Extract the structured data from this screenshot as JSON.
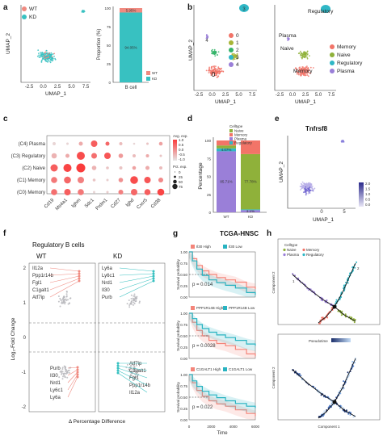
{
  "colors": {
    "wt": "#f08a80",
    "kd": "#38c1c1",
    "c0": "#f27468",
    "c1": "#a7b536",
    "c2": "#35b46a",
    "c3": "#2fb7c6",
    "c4": "#9a7fd8",
    "memory": "#f27468",
    "naive": "#8fb13a",
    "regulatory": "#2fb7c6",
    "plasma": "#9a7fd8",
    "grey": "#b9b9bd",
    "high": "#f4857a",
    "low": "#29b3c1"
  },
  "panels": {
    "a": {
      "letter": "a",
      "umap": {
        "xlabel": "UMAP_1",
        "ylabel": "UMAP_2",
        "xticks": [
          "-2.5",
          "0.0",
          "2.5",
          "5.0",
          "7.5"
        ],
        "legend": [
          {
            "label": "WT",
            "color": "wt"
          },
          {
            "label": "KD",
            "color": "kd"
          }
        ]
      },
      "bar": {
        "ylabel": "Proportion (%)",
        "category": "B cell",
        "ylim": [
          0,
          100
        ],
        "yticks": [
          "0",
          "25",
          "50",
          "75",
          "100"
        ],
        "series": [
          {
            "name": "KD",
            "value": 94.0,
            "label": "94.05%",
            "color": "kd"
          },
          {
            "name": "WT",
            "value": 6.0,
            "label": "5.95%",
            "color": "wt"
          }
        ],
        "legend": [
          {
            "label": "WT",
            "color": "wt"
          },
          {
            "label": "KD",
            "color": "kd"
          }
        ]
      }
    },
    "b": {
      "letter": "b",
      "left": {
        "xlabel": "UMAP_1",
        "ylabel": "UMAP_2",
        "xticks": [
          "-2.5",
          "0.0",
          "2.5",
          "5.0",
          "7.5"
        ],
        "cluster_labels": [
          "0",
          "3",
          "4"
        ],
        "legend": [
          {
            "label": "0",
            "color": "c0"
          },
          {
            "label": "1",
            "color": "c1"
          },
          {
            "label": "2",
            "color": "c2"
          },
          {
            "label": "3",
            "color": "c3"
          },
          {
            "label": "4",
            "color": "c4"
          }
        ]
      },
      "right": {
        "xlabel": "UMAP_1",
        "xticks": [
          "-2.5",
          "0.0",
          "2.5",
          "5.0",
          "7.5"
        ],
        "annotations": [
          "Regulatory",
          "Plasma",
          "Naive",
          "Memory"
        ],
        "legend": [
          {
            "label": "Memory",
            "color": "memory"
          },
          {
            "label": "Naive",
            "color": "naive"
          },
          {
            "label": "Regulatory",
            "color": "regulatory"
          },
          {
            "label": "Plasma",
            "color": "plasma"
          }
        ]
      }
    },
    "c": {
      "letter": "c",
      "rows": [
        "(C4) Plasma",
        "(C3) Regulatory",
        "(C2) Naive",
        "(C1) Memory",
        "(C0) Memory"
      ],
      "genes": [
        "Cd19",
        "Ms4a1",
        "Ighm",
        "Sdc1",
        "Prdm1",
        "Cd27",
        "Ighd",
        "Cxcr5",
        "Cd38"
      ],
      "legend_title_color": "Avg. exp.",
      "legend_colors": [
        "1.0",
        "0.5",
        "0.0",
        "-0.5",
        "-1.0"
      ],
      "legend_title_size": "Pct. exp.",
      "legend_sizes": [
        "0",
        "25",
        "50",
        "75"
      ],
      "dots": [
        [
          [
            0.2,
            -0.8
          ],
          [
            0.1,
            -0.8
          ],
          [
            0.3,
            -0.3
          ],
          [
            0.6,
            0.6
          ],
          [
            0.3,
            0.5
          ],
          [
            0.2,
            -0.5
          ],
          [
            0.05,
            -0.8
          ],
          [
            0.1,
            -0.6
          ],
          [
            0.25,
            -0.2
          ]
        ],
        [
          [
            0.45,
            -0.4
          ],
          [
            0.3,
            -0.3
          ],
          [
            0.8,
            0.8
          ],
          [
            0.5,
            0.4
          ],
          [
            0.6,
            0.7
          ],
          [
            0.35,
            -0.1
          ],
          [
            0.2,
            -0.5
          ],
          [
            0.2,
            -0.3
          ],
          [
            0.1,
            -0.6
          ]
        ],
        [
          [
            0.7,
            0.6
          ],
          [
            0.8,
            0.9
          ],
          [
            0.9,
            1.0
          ],
          [
            0.35,
            -0.4
          ],
          [
            0.15,
            -0.6
          ],
          [
            0.2,
            -0.6
          ],
          [
            0.25,
            -0.2
          ],
          [
            0.3,
            -0.3
          ],
          [
            0.2,
            -0.5
          ]
        ],
        [
          [
            0.55,
            0.3
          ],
          [
            0.65,
            0.5
          ],
          [
            0.6,
            0.2
          ],
          [
            0.15,
            -0.6
          ],
          [
            0.1,
            -0.7
          ],
          [
            0.35,
            0.0
          ],
          [
            0.75,
            0.8
          ],
          [
            0.6,
            0.7
          ],
          [
            0.4,
            0.1
          ]
        ],
        [
          [
            0.55,
            0.4
          ],
          [
            0.6,
            0.6
          ],
          [
            0.55,
            0.3
          ],
          [
            0.1,
            -0.8
          ],
          [
            0.1,
            -0.7
          ],
          [
            0.4,
            0.2
          ],
          [
            0.6,
            0.5
          ],
          [
            0.55,
            0.6
          ],
          [
            0.65,
            0.9
          ]
        ]
      ]
    },
    "d": {
      "letter": "d",
      "ylabel": "Percentage",
      "ylim": [
        0,
        100
      ],
      "yticks": [
        "0",
        "25",
        "50",
        "75",
        "100"
      ],
      "categories": [
        "WT",
        "KD"
      ],
      "legend_title": "Celltype",
      "legend": [
        {
          "label": "Naive",
          "color": "naive"
        },
        {
          "label": "Memory",
          "color": "memory"
        },
        {
          "label": "Plasma",
          "color": "plasma"
        },
        {
          "label": "Regulatory",
          "color": "regulatory"
        }
      ],
      "stacks": [
        [
          {
            "celltype": "plasma",
            "value": 85.0,
            "label": "85.71%"
          },
          {
            "celltype": "regulatory",
            "value": 4.0,
            "label": "4.07%"
          },
          {
            "celltype": "naive",
            "value": 4.0,
            "label": ""
          },
          {
            "celltype": "memory",
            "value": 7.0,
            "label": ""
          }
        ],
        [
          {
            "celltype": "plasma",
            "value": 3.0,
            "label": "3.1%"
          },
          {
            "celltype": "regulatory",
            "value": 1.0,
            "label": ""
          },
          {
            "celltype": "naive",
            "value": 77.0,
            "label": "77.78%"
          },
          {
            "celltype": "memory",
            "value": 19.0,
            "label": ""
          }
        ]
      ]
    },
    "e": {
      "letter": "e",
      "title": "Tnfrsf8",
      "xlabel": "UMAP_1",
      "ylabel": "UMAP_2",
      "xticks": [
        "0",
        "5"
      ],
      "colorbar": [
        "2.0",
        "1.5",
        "1.0",
        "0.5",
        "0.0"
      ]
    },
    "f": {
      "letter": "f",
      "title": "Regulatory B cells",
      "ylabel": "Log₂-Fold Change",
      "xlabel": "Δ Percentage Difference",
      "yticks": [
        "2",
        "1",
        "0",
        "-1",
        "-2"
      ],
      "wt": {
        "name": "WT",
        "up": [
          "Il12a",
          "Ppp1r14b",
          "Fgl1",
          "C1galt1",
          "Atf7ip"
        ],
        "down": [
          "Purb",
          "Il30",
          "Nrd1",
          "Ly6c1",
          "Ly6a"
        ]
      },
      "kd": {
        "name": "KD",
        "up": [
          "Ly6a",
          "Ly6c1",
          "Nrd1",
          "Il30",
          "Purb"
        ],
        "down": [
          "Atf7ip",
          "C1galt1",
          "Fgl1",
          "Ppp1r14b",
          "Il12a"
        ]
      }
    },
    "g": {
      "letter": "g",
      "title": "TCGA-HNSC",
      "ylabel": "Survival probability",
      "xlabel": "Time",
      "xticks": [
        "0",
        "2000",
        "4000",
        "6000"
      ],
      "yticks": [
        "1.00",
        "0.75",
        "0.50",
        "0.25",
        "0.00"
      ],
      "plots": [
        {
          "high": "Il30 High",
          "low": "Il30 Low",
          "p": "p = 0.014",
          "high_curve": [
            [
              0,
              1.0
            ],
            [
              300,
              0.85
            ],
            [
              700,
              0.7
            ],
            [
              1200,
              0.58
            ],
            [
              1800,
              0.5
            ],
            [
              2500,
              0.43
            ],
            [
              3300,
              0.38
            ],
            [
              4200,
              0.33
            ],
            [
              5200,
              0.22
            ],
            [
              6000,
              0.18
            ]
          ],
          "low_curve": [
            [
              0,
              1.0
            ],
            [
              300,
              0.8
            ],
            [
              700,
              0.62
            ],
            [
              1200,
              0.48
            ],
            [
              1800,
              0.38
            ],
            [
              2500,
              0.32
            ],
            [
              3300,
              0.26
            ],
            [
              4200,
              0.2
            ],
            [
              5200,
              0.1
            ],
            [
              6000,
              0.05
            ]
          ]
        },
        {
          "high": "PPP1R14B High",
          "low": "PPP1R14B Low",
          "p": "p = 0.0028",
          "high_curve": [
            [
              0,
              1.0
            ],
            [
              300,
              0.8
            ],
            [
              700,
              0.62
            ],
            [
              1200,
              0.5
            ],
            [
              1800,
              0.4
            ],
            [
              2500,
              0.33
            ],
            [
              3300,
              0.28
            ],
            [
              4200,
              0.2
            ],
            [
              5200,
              0.1
            ],
            [
              6000,
              0.05
            ]
          ],
          "low_curve": [
            [
              0,
              1.0
            ],
            [
              300,
              0.88
            ],
            [
              700,
              0.75
            ],
            [
              1200,
              0.66
            ],
            [
              1800,
              0.58
            ],
            [
              2500,
              0.52
            ],
            [
              3300,
              0.46
            ],
            [
              4200,
              0.4
            ],
            [
              5200,
              0.32
            ],
            [
              6000,
              0.28
            ]
          ]
        },
        {
          "high": "C1GALT1 High",
          "low": "C1GALT1 Low",
          "p": "p = 0.022",
          "high_curve": [
            [
              0,
              1.0
            ],
            [
              300,
              0.82
            ],
            [
              700,
              0.65
            ],
            [
              1200,
              0.52
            ],
            [
              1800,
              0.42
            ],
            [
              2500,
              0.35
            ],
            [
              3300,
              0.3
            ],
            [
              4200,
              0.22
            ],
            [
              5200,
              0.14
            ],
            [
              6000,
              0.08
            ]
          ],
          "low_curve": [
            [
              0,
              1.0
            ],
            [
              300,
              0.86
            ],
            [
              700,
              0.74
            ],
            [
              1200,
              0.63
            ],
            [
              1800,
              0.55
            ],
            [
              2500,
              0.49
            ],
            [
              3300,
              0.42
            ],
            [
              4200,
              0.36
            ],
            [
              5200,
              0.3
            ],
            [
              6000,
              0.26
            ]
          ]
        }
      ]
    },
    "h": {
      "letter": "h",
      "legend_title": "Celltype",
      "legend": [
        {
          "label": "Naive",
          "color": "naive"
        },
        {
          "label": "Memory",
          "color": "memory"
        },
        {
          "label": "Plasma",
          "color": "plasma"
        },
        {
          "label": "Regulatory",
          "color": "regulatory"
        }
      ],
      "pseudotime_label": "Pseudotime",
      "xlabel": "Component 1",
      "ylabel": "Component 2",
      "branch_labels": [
        "1",
        "2"
      ]
    }
  },
  "chart_data": [
    {
      "type": "bar",
      "panel": "a",
      "categories": [
        "B cell"
      ],
      "ylabel": "Proportion (%)",
      "ylim": [
        0,
        100
      ],
      "series": [
        {
          "name": "KD",
          "values": [
            94.05
          ]
        },
        {
          "name": "WT",
          "values": [
            5.95
          ]
        }
      ]
    },
    {
      "type": "bar",
      "panel": "d",
      "categories": [
        "WT",
        "KD"
      ],
      "ylabel": "Percentage",
      "ylim": [
        0,
        100
      ],
      "series": [
        {
          "name": "Plasma",
          "values": [
            85.71,
            3.1
          ]
        },
        {
          "name": "Regulatory",
          "values": [
            4.07,
            1
          ]
        },
        {
          "name": "Naive",
          "values": [
            4,
            77.78
          ]
        },
        {
          "name": "Memory",
          "values": [
            6.22,
            18.12
          ]
        }
      ]
    },
    {
      "type": "line",
      "panel": "g",
      "title": "TCGA-HNSC",
      "ylabel": "Survival probability",
      "xlabel": "Time"
    },
    {
      "type": "scatter",
      "panel": "c",
      "categories": [
        "Cd19",
        "Ms4a1",
        "Ighm",
        "Sdc1",
        "Prdm1",
        "Cd27",
        "Ighd",
        "Cxcr5",
        "Cd38"
      ]
    }
  ]
}
